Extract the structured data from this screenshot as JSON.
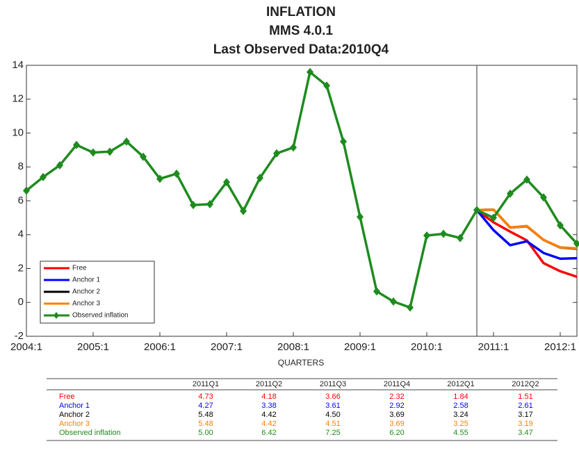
{
  "chart_data": {
    "type": "line",
    "title": [
      "INFLATION",
      "MMS 4.0.1",
      "Last Observed Data:2010Q4"
    ],
    "x_label": "QUARTERS",
    "categories": [
      "2004:1",
      null,
      null,
      null,
      "2005:1",
      null,
      null,
      null,
      "2006:1",
      null,
      null,
      null,
      "2007:1",
      null,
      null,
      null,
      "2008:1",
      null,
      null,
      null,
      "2009:1",
      null,
      null,
      null,
      "2010:1",
      null,
      null,
      null,
      "2011:1",
      null,
      null,
      null,
      "2012:1",
      null
    ],
    "ylim": [
      -2,
      14
    ],
    "yticks": [
      -2,
      0,
      2,
      4,
      6,
      8,
      10,
      12,
      14
    ],
    "legend": "lower left",
    "series": [
      {
        "name": "Free",
        "color": "#ff0000",
        "values": [
          null,
          null,
          null,
          null,
          null,
          null,
          null,
          null,
          null,
          null,
          null,
          null,
          null,
          null,
          null,
          null,
          null,
          null,
          null,
          null,
          null,
          null,
          null,
          null,
          null,
          null,
          null,
          5.45,
          4.73,
          4.18,
          3.66,
          2.32,
          1.84,
          1.51
        ]
      },
      {
        "name": "Anchor 1",
        "color": "#0000ff",
        "values": [
          null,
          null,
          null,
          null,
          null,
          null,
          null,
          null,
          null,
          null,
          null,
          null,
          null,
          null,
          null,
          null,
          null,
          null,
          null,
          null,
          null,
          null,
          null,
          null,
          null,
          null,
          null,
          5.45,
          4.27,
          3.38,
          3.61,
          2.92,
          2.58,
          2.61
        ]
      },
      {
        "name": "Anchor 2",
        "color": "#000000",
        "values": [
          null,
          null,
          null,
          null,
          null,
          null,
          null,
          null,
          null,
          null,
          null,
          null,
          null,
          null,
          null,
          null,
          null,
          null,
          null,
          null,
          null,
          null,
          null,
          null,
          null,
          null,
          null,
          5.45,
          5.48,
          4.42,
          4.5,
          3.69,
          3.24,
          3.17
        ]
      },
      {
        "name": "Anchor 3",
        "color": "#ff8000",
        "values": [
          null,
          null,
          null,
          null,
          null,
          null,
          null,
          null,
          null,
          null,
          null,
          null,
          null,
          null,
          null,
          null,
          null,
          null,
          null,
          null,
          null,
          null,
          null,
          null,
          null,
          null,
          null,
          5.45,
          5.48,
          4.42,
          4.51,
          3.69,
          3.25,
          3.19
        ]
      },
      {
        "name": "Observed inflation",
        "color": "#1e8b1e",
        "values": [
          6.6,
          7.4,
          8.1,
          9.3,
          8.85,
          8.9,
          9.5,
          8.6,
          7.3,
          7.6,
          5.75,
          5.8,
          7.1,
          5.4,
          7.35,
          8.8,
          9.15,
          13.6,
          12.8,
          9.5,
          5.05,
          0.65,
          0.05,
          -0.3,
          3.95,
          4.05,
          3.8,
          5.45,
          5.0,
          6.42,
          7.25,
          6.2,
          4.55,
          3.47
        ]
      }
    ]
  },
  "table": {
    "header": [
      "2011Q1",
      "2011Q2",
      "2011Q3",
      "2011Q4",
      "2012Q1",
      "2012Q2"
    ],
    "rows": [
      {
        "name": "Free",
        "color": "#ff0000",
        "cells": [
          "4.73",
          "4.18",
          "3.66",
          "2.32",
          "1.84",
          "1.51"
        ]
      },
      {
        "name": "Anchor 1",
        "color": "#0000ff",
        "cells": [
          "4.27",
          "3.38",
          "3.61",
          "2.92",
          "2.58",
          "2.61"
        ]
      },
      {
        "name": "Anchor 2",
        "color": "#000000",
        "cells": [
          "5.48",
          "4.42",
          "4.50",
          "3.69",
          "3.24",
          "3.17"
        ]
      },
      {
        "name": "Anchor 3",
        "color": "#ff8000",
        "cells": [
          "5.48",
          "4.42",
          "4.51",
          "3.69",
          "3.25",
          "3.19"
        ]
      },
      {
        "name": "Observed inflation",
        "color": "#1e8b1e",
        "cells": [
          "5.00",
          "6.42",
          "7.25",
          "6.20",
          "4.55",
          "3.47"
        ]
      }
    ]
  }
}
